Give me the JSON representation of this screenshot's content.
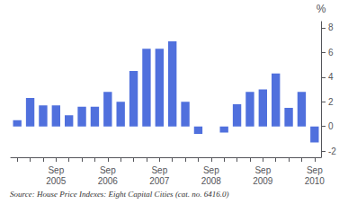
{
  "chart_data": {
    "type": "bar",
    "categories": [
      null,
      null,
      null,
      "Sep\n2005",
      null,
      null,
      null,
      "Sep\n2006",
      null,
      null,
      null,
      "Sep\n2007",
      null,
      null,
      null,
      "Sep\n2008",
      null,
      null,
      null,
      "Sep\n2009",
      null,
      null,
      null,
      "Sep\n2010"
    ],
    "values": [
      0.5,
      2.3,
      1.7,
      1.7,
      0.9,
      1.6,
      1.6,
      2.8,
      2.0,
      4.5,
      6.3,
      6.3,
      6.9,
      2.0,
      -0.6,
      0.0,
      -0.5,
      1.8,
      2.8,
      3.0,
      4.3,
      1.5,
      2.8,
      -1.3
    ],
    "ylabel": "%",
    "ylim": [
      -2.5,
      8.5
    ],
    "yticks": [
      -2,
      0,
      2,
      4,
      6,
      8
    ],
    "source": "Source: House Price Indexes: Eight Capital Cities (cat. no. 6416.0)",
    "grid": false
  }
}
